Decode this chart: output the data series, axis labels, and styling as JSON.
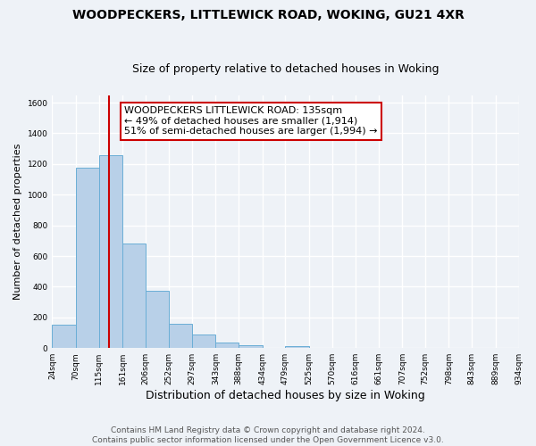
{
  "title": "WOODPECKERS, LITTLEWICK ROAD, WOKING, GU21 4XR",
  "subtitle": "Size of property relative to detached houses in Woking",
  "xlabel": "Distribution of detached houses by size in Woking",
  "ylabel": "Number of detached properties",
  "bar_edges": [
    24,
    70,
    115,
    161,
    206,
    252,
    297,
    343,
    388,
    434,
    479,
    525,
    570,
    616,
    661,
    707,
    752,
    798,
    843,
    889,
    934
  ],
  "bar_heights": [
    150,
    1175,
    1255,
    680,
    375,
    160,
    90,
    35,
    20,
    0,
    10,
    0,
    0,
    0,
    0,
    0,
    0,
    0,
    0,
    0
  ],
  "bar_color": "#b8d0e8",
  "bar_edgecolor": "#6aaed6",
  "property_line_x": 135,
  "property_line_color": "#cc0000",
  "annotation_text": "WOODPECKERS LITTLEWICK ROAD: 135sqm\n← 49% of detached houses are smaller (1,914)\n51% of semi-detached houses are larger (1,994) →",
  "annotation_box_edgecolor": "#cc0000",
  "annotation_box_facecolor": "#ffffff",
  "ylim": [
    0,
    1650
  ],
  "yticks": [
    0,
    200,
    400,
    600,
    800,
    1000,
    1200,
    1400,
    1600
  ],
  "background_color": "#eef2f7",
  "grid_color": "#ffffff",
  "footer_text": "Contains HM Land Registry data © Crown copyright and database right 2024.\nContains public sector information licensed under the Open Government Licence v3.0.",
  "title_fontsize": 10,
  "subtitle_fontsize": 9,
  "xlabel_fontsize": 9,
  "ylabel_fontsize": 8,
  "annotation_fontsize": 8,
  "footer_fontsize": 6.5,
  "tick_fontsize": 6.5
}
